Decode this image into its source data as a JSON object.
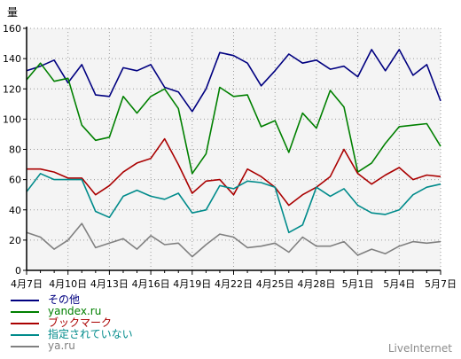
{
  "brand": "LiveInternet",
  "chart_data": {
    "type": "line",
    "ylabel": "量",
    "ylim": [
      0,
      160
    ],
    "yticks": [
      0,
      20,
      40,
      60,
      80,
      100,
      120,
      140,
      160
    ],
    "x": [
      "4月7日",
      "4月8日",
      "4月9日",
      "4月10日",
      "4月11日",
      "4月12日",
      "4月13日",
      "4月14日",
      "4月15日",
      "4月16日",
      "4月17日",
      "4月18日",
      "4月19日",
      "4月20日",
      "4月21日",
      "4月22日",
      "4月23日",
      "4月24日",
      "4月25日",
      "4月26日",
      "4月27日",
      "4月28日",
      "4月29日",
      "4月30日",
      "5月1日",
      "5月2日",
      "5月3日",
      "5月4日",
      "5月5日",
      "5月6日",
      "5月7日"
    ],
    "xtick_labels": [
      "4月7日",
      "4月10日",
      "4月13日",
      "4月16日",
      "4月19日",
      "4月22日",
      "4月25日",
      "4月28日",
      "5月1日",
      "5月4日",
      "5月7日"
    ],
    "xtick_every": 3,
    "grid": true,
    "background": "#f4f4f4",
    "series": [
      {
        "name": "その他",
        "color": "#000080",
        "values": [
          132,
          135,
          139,
          124,
          136,
          116,
          115,
          134,
          132,
          136,
          121,
          118,
          105,
          120,
          144,
          142,
          137,
          122,
          132,
          143,
          137,
          139,
          133,
          135,
          128,
          146,
          132,
          146,
          129,
          136,
          112
        ]
      },
      {
        "name": "yandex.ru",
        "color": "#008000",
        "values": [
          126,
          137,
          125,
          127,
          96,
          86,
          88,
          115,
          104,
          115,
          120,
          107,
          64,
          77,
          121,
          115,
          116,
          95,
          99,
          78,
          104,
          94,
          119,
          108,
          65,
          71,
          84,
          95,
          96,
          97,
          82
        ]
      },
      {
        "name": "ブックマーク",
        "color": "#aa0000",
        "values": [
          67,
          67,
          65,
          61,
          61,
          50,
          56,
          65,
          71,
          74,
          87,
          70,
          51,
          59,
          60,
          50,
          67,
          62,
          55,
          43,
          50,
          55,
          62,
          80,
          64,
          57,
          63,
          68,
          60,
          63,
          62
        ]
      },
      {
        "name": "指定されていない",
        "color": "#008b8b",
        "values": [
          52,
          64,
          60,
          60,
          60,
          39,
          35,
          49,
          53,
          49,
          47,
          51,
          38,
          40,
          56,
          54,
          59,
          58,
          55,
          25,
          30,
          55,
          49,
          54,
          43,
          38,
          37,
          40,
          50,
          55,
          57
        ]
      },
      {
        "name": "ya.ru",
        "color": "#808080",
        "values": [
          25,
          22,
          14,
          20,
          31,
          15,
          18,
          21,
          14,
          23,
          17,
          18,
          9,
          17,
          24,
          22,
          15,
          16,
          18,
          12,
          22,
          16,
          16,
          19,
          10,
          14,
          11,
          16,
          19,
          18,
          19
        ]
      }
    ]
  }
}
